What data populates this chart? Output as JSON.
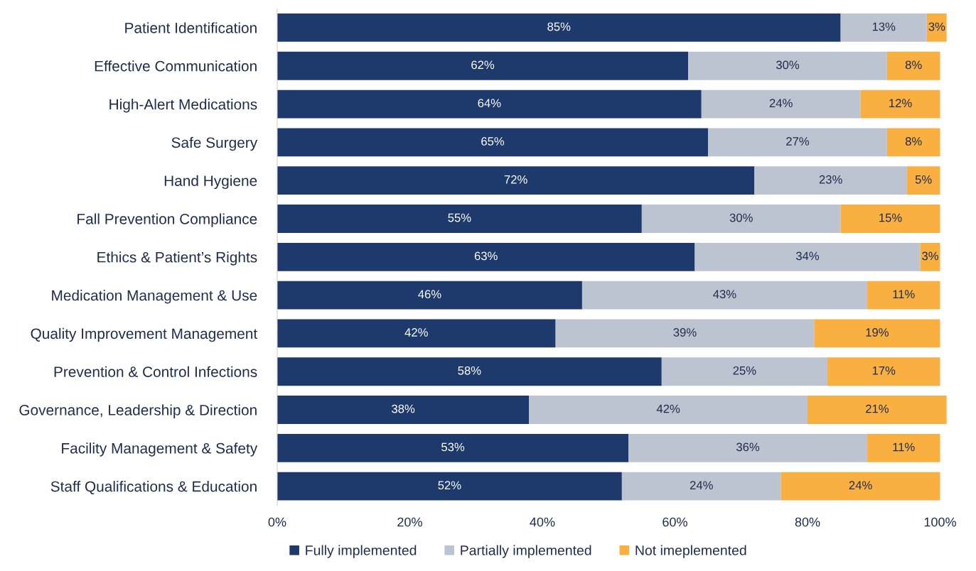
{
  "chart_data": {
    "type": "bar",
    "orientation": "horizontal",
    "stacked": true,
    "legend": "bottom",
    "grid": false,
    "categories": [
      "Patient Identification",
      "Effective Communication",
      "High-Alert Medications",
      "Safe Surgery",
      "Hand Hygiene",
      "Fall Prevention Compliance",
      "Ethics & Patient’s Rights",
      "Medication Management & Use",
      "Quality Improvement Management",
      "Prevention & Control Infections",
      "Governance, Leadership & Direction",
      "Facility Management & Safety",
      "Staff Qualifications & Education"
    ],
    "series": [
      {
        "name": "Fully implemented",
        "color": "#1e3a6d",
        "values": [
          85,
          62,
          64,
          65,
          72,
          55,
          63,
          46,
          42,
          58,
          38,
          53,
          52
        ],
        "value_labels": [
          "85%",
          "62%",
          "64%",
          "65%",
          "72%",
          "55%",
          "63%",
          "46%",
          "42%",
          "58%",
          "38%",
          "53%",
          "52%"
        ]
      },
      {
        "name": "Partially implemented",
        "color": "#bcc4d2",
        "values": [
          13,
          30,
          24,
          27,
          23,
          30,
          34,
          43,
          39,
          25,
          42,
          36,
          24
        ],
        "value_labels": [
          "13%",
          "30%",
          "24%",
          "27%",
          "23%",
          "30%",
          "34%",
          "43%",
          "39%",
          "25%",
          "42%",
          "36%",
          "24%"
        ]
      },
      {
        "name": "Not imeplemented",
        "color": "#f9b041",
        "values": [
          3,
          8,
          12,
          8,
          5,
          15,
          3,
          11,
          19,
          17,
          21,
          11,
          24
        ],
        "value_labels": [
          "3%",
          "8%",
          "12%",
          "8%",
          "5%",
          "15%",
          "3%",
          "11%",
          "19%",
          "17%",
          "21%",
          "11%",
          "24%"
        ]
      }
    ],
    "xlim": [
      0,
      101
    ],
    "xticks": [
      {
        "value": 0,
        "label": "0%"
      },
      {
        "value": 20,
        "label": "20%"
      },
      {
        "value": 40,
        "label": "40%"
      },
      {
        "value": 60,
        "label": "60%"
      },
      {
        "value": 80,
        "label": "80%"
      },
      {
        "value": 100,
        "label": "100%"
      }
    ]
  }
}
